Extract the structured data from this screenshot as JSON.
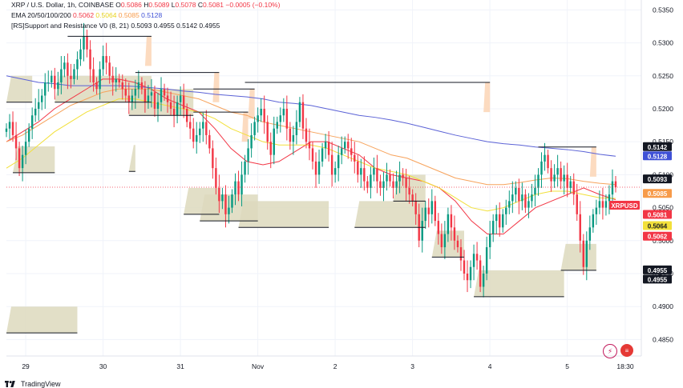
{
  "header": {
    "title": "XRP / U.S. Dollar, 1h, COINBASE",
    "ohlc": {
      "o_label": "O",
      "o": "0.5086",
      "h_label": "H",
      "h": "0.5089",
      "l_label": "L",
      "l": "0.5078",
      "c_label": "C",
      "c": "0.5081",
      "change": "−0.0005 (−0.10%)"
    },
    "ema_line": {
      "label": "EMA 20/50/100/200",
      "v20": "0.5062",
      "v50": "0.5064",
      "v100": "0.5085",
      "v200": "0.5128"
    },
    "sr_line": {
      "label": "[RS]Support and Resistance V0 (8, 21)",
      "vals": "0.5093  0.4955  0.5142  0.4955"
    }
  },
  "footer": {
    "brand": "TradingView"
  },
  "icons": {
    "a": "lightning-icon",
    "b": "flag-icon"
  },
  "colors": {
    "up": "#089981",
    "down": "#f23645",
    "ema20": "#f23645",
    "ema50": "#f2e03a",
    "ema100": "#f7a35c",
    "ema200": "#5b62d6",
    "resist_fill": "#fbd5b5",
    "support_fill": "#ddd9bd"
  },
  "chart_data": {
    "type": "candlestick",
    "symbol": "XRPUSD",
    "ylim": [
      0.4825,
      0.5365
    ],
    "y_ticks": [
      "0.5350",
      "0.5300",
      "0.5250",
      "0.5200",
      "0.5150",
      "0.5100",
      "0.5050",
      "0.5000",
      "0.4950",
      "0.4900",
      "0.4850"
    ],
    "x_ticks": [
      {
        "label": "29",
        "at": 3
      },
      {
        "label": "30",
        "at": 27
      },
      {
        "label": "31",
        "at": 51
      },
      {
        "label": "Nov",
        "at": 75
      },
      {
        "label": "2",
        "at": 99
      },
      {
        "label": "3",
        "at": 123
      },
      {
        "label": "4",
        "at": 147
      },
      {
        "label": "5",
        "at": 171
      },
      {
        "label": "18:30",
        "at": 189
      }
    ],
    "close_path": [
      0.517,
      0.518,
      0.516,
      0.514,
      0.511,
      0.513,
      0.515,
      0.517,
      0.519,
      0.52,
      0.521,
      0.522,
      0.524,
      0.524,
      0.525,
      0.523,
      0.524,
      0.526,
      0.527,
      0.525,
      0.5245,
      0.526,
      0.5275,
      0.529,
      0.531,
      0.529,
      0.526,
      0.524,
      0.523,
      0.526,
      0.528,
      0.527,
      0.525,
      0.524,
      0.5245,
      0.524,
      0.523,
      0.522,
      0.521,
      0.522,
      0.523,
      0.524,
      0.523,
      0.521,
      0.522,
      0.5225,
      0.52,
      0.521,
      0.523,
      0.522,
      0.521,
      0.52,
      0.519,
      0.521,
      0.522,
      0.52,
      0.518,
      0.517,
      0.515,
      0.516,
      0.517,
      0.518,
      0.516,
      0.514,
      0.511,
      0.508,
      0.506,
      0.507,
      0.504,
      0.505,
      0.507,
      0.509,
      0.507,
      0.51,
      0.512,
      0.514,
      0.516,
      0.518,
      0.519,
      0.52,
      0.518,
      0.515,
      0.513,
      0.517,
      0.518,
      0.519,
      0.52,
      0.517,
      0.515,
      0.516,
      0.518,
      0.521,
      0.517,
      0.515,
      0.514,
      0.512,
      0.51,
      0.512,
      0.514,
      0.515,
      0.513,
      0.51,
      0.511,
      0.513,
      0.514,
      0.515,
      0.514,
      0.513,
      0.512,
      0.51,
      0.511,
      0.509,
      0.508,
      0.51,
      0.511,
      0.509,
      0.508,
      0.509,
      0.51,
      0.509,
      0.508,
      0.509,
      0.51,
      0.5095,
      0.508,
      0.507,
      0.506,
      0.504,
      0.5,
      0.503,
      0.505,
      0.504,
      0.506,
      0.503,
      0.501,
      0.499,
      0.501,
      0.504,
      0.502,
      0.5,
      0.499,
      0.497,
      0.495,
      0.494,
      0.496,
      0.498,
      0.497,
      0.493,
      0.495,
      0.499,
      0.501,
      0.503,
      0.504,
      0.502,
      0.504,
      0.505,
      0.506,
      0.507,
      0.508,
      0.506,
      0.507,
      0.505,
      0.506,
      0.507,
      0.508,
      0.51,
      0.512,
      0.513,
      0.511,
      0.509,
      0.51,
      0.511,
      0.509,
      0.51,
      0.508,
      0.509,
      0.507,
      0.504,
      0.5,
      0.496,
      0.5,
      0.502,
      0.504,
      0.505,
      0.506,
      0.505,
      0.506,
      0.507,
      0.509,
      0.5081
    ],
    "ema": {
      "ema20": [
        0.515,
        0.5165,
        0.518,
        0.52,
        0.5215,
        0.523,
        0.5245,
        0.5245,
        0.524,
        0.523,
        0.5215,
        0.5205,
        0.5195,
        0.517,
        0.514,
        0.512,
        0.5115,
        0.512,
        0.5135,
        0.515,
        0.515,
        0.514,
        0.513,
        0.511,
        0.51,
        0.5095,
        0.509,
        0.508,
        0.506,
        0.503,
        0.501,
        0.501,
        0.503,
        0.505,
        0.506,
        0.507,
        0.508,
        0.507,
        0.5062
      ],
      "ema50": [
        0.511,
        0.5125,
        0.5145,
        0.5165,
        0.518,
        0.5195,
        0.5205,
        0.5215,
        0.5215,
        0.521,
        0.5205,
        0.52,
        0.5195,
        0.5185,
        0.517,
        0.516,
        0.515,
        0.5145,
        0.5145,
        0.5145,
        0.514,
        0.513,
        0.512,
        0.511,
        0.5105,
        0.51,
        0.509,
        0.508,
        0.5065,
        0.505,
        0.5045,
        0.505,
        0.506,
        0.507,
        0.5075,
        0.5075,
        0.507,
        0.5065,
        0.5064
      ],
      "ema100": [
        0.515,
        0.516,
        0.5175,
        0.519,
        0.5205,
        0.5215,
        0.5225,
        0.523,
        0.523,
        0.523,
        0.5225,
        0.522,
        0.5215,
        0.5205,
        0.5195,
        0.519,
        0.518,
        0.5175,
        0.517,
        0.5165,
        0.516,
        0.5155,
        0.515,
        0.514,
        0.513,
        0.5125,
        0.5115,
        0.5105,
        0.5095,
        0.509,
        0.5085,
        0.5085,
        0.5088,
        0.5092,
        0.5095,
        0.5094,
        0.509,
        0.5087,
        0.5085
      ],
      "ema200": [
        0.525,
        0.5245,
        0.524,
        0.5238,
        0.5235,
        0.5235,
        0.5235,
        0.5235,
        0.5234,
        0.5232,
        0.523,
        0.5227,
        0.5225,
        0.5222,
        0.522,
        0.5218,
        0.5215,
        0.521,
        0.5208,
        0.5205,
        0.52,
        0.5195,
        0.519,
        0.5187,
        0.5183,
        0.5178,
        0.5172,
        0.5166,
        0.516,
        0.5155,
        0.515,
        0.5147,
        0.5145,
        0.5142,
        0.514,
        0.5138,
        0.5135,
        0.5131,
        0.5128
      ]
    },
    "support_resistance": {
      "resistance": [
        {
          "from": 19,
          "to": 45,
          "level": 0.531
        },
        {
          "from": 40,
          "to": 66,
          "level": 0.5255
        },
        {
          "from": 58,
          "to": 77,
          "level": 0.523
        },
        {
          "from": 58,
          "to": 75,
          "level": 0.5195
        },
        {
          "from": 74,
          "to": 150,
          "level": 0.524
        },
        {
          "from": 165,
          "to": 183,
          "level": 0.5142
        }
      ],
      "support": [
        {
          "from": 0,
          "to": 22,
          "level": 0.486
        },
        {
          "from": 15,
          "to": 45,
          "level": 0.521
        },
        {
          "from": 38,
          "to": 58,
          "level": 0.519
        },
        {
          "from": 0,
          "to": 8,
          "level": 0.521
        },
        {
          "from": 2,
          "to": 15,
          "level": 0.5103
        },
        {
          "from": 38,
          "to": 40,
          "level": 0.5105
        },
        {
          "from": 55,
          "to": 66,
          "level": 0.504
        },
        {
          "from": 60,
          "to": 78,
          "level": 0.503
        },
        {
          "from": 72,
          "to": 100,
          "level": 0.502
        },
        {
          "from": 108,
          "to": 130,
          "level": 0.502
        },
        {
          "from": 120,
          "to": 130,
          "level": 0.506
        },
        {
          "from": 132,
          "to": 142,
          "level": 0.4975
        },
        {
          "from": 145,
          "to": 173,
          "level": 0.4915
        },
        {
          "from": 172,
          "to": 183,
          "level": 0.4955
        }
      ]
    },
    "price_labels": [
      {
        "text": "0.5142",
        "bg": "#131722",
        "fg": "#ffffff",
        "value": 0.5142
      },
      {
        "text": "0.5128",
        "bg": "#3f51d6",
        "fg": "#ffffff",
        "value": 0.5128
      },
      {
        "text": "0.5093",
        "bg": "#131722",
        "fg": "#ffffff",
        "value": 0.5093
      },
      {
        "text": "0.5085",
        "bg": "#f79b4a",
        "fg": "#ffffff",
        "value": 0.5085
      },
      {
        "text": "XRPUSD",
        "bg": "#f23645",
        "fg": "#ffffff",
        "value": 0.5081
      },
      {
        "text": "0.5081",
        "bg": "#f23645",
        "fg": "#ffffff",
        "value": 0.5081
      },
      {
        "text": "0.5064",
        "bg": "#f2e03a",
        "fg": "#131722",
        "value": 0.5064
      },
      {
        "text": "0.5062",
        "bg": "#f23645",
        "fg": "#ffffff",
        "value": 0.5062
      },
      {
        "text": "0.4955",
        "bg": "#131722",
        "fg": "#ffffff",
        "value": 0.4955
      },
      {
        "text": "0.4955",
        "bg": "#131722",
        "fg": "#ffffff",
        "value": 0.4955
      }
    ]
  }
}
